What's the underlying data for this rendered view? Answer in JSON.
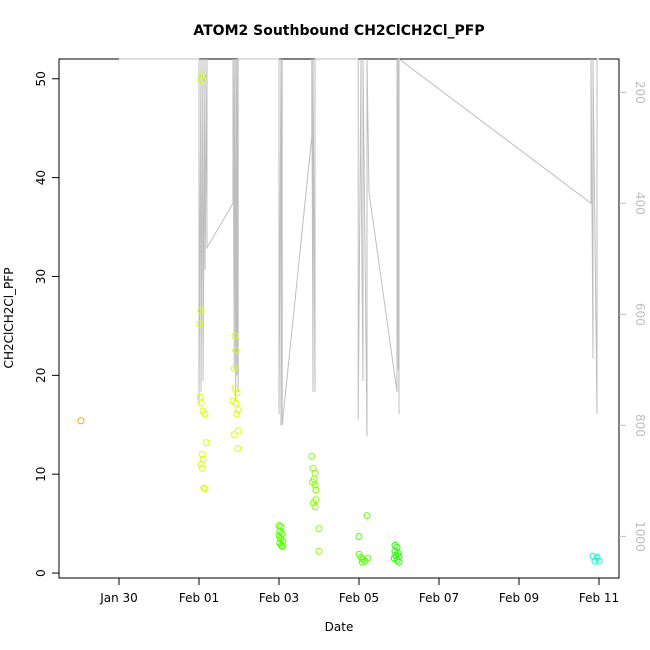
{
  "chart_data": {
    "type": "scatter",
    "title": "ATOM2 Southbound CH2ClCH2Cl_PFP",
    "xlabel": "Date",
    "ylabel": "CH2ClCH2Cl_PFP",
    "x_unit": "days relative to Jan 30",
    "xlim": [
      -1.5,
      12.5
    ],
    "ylim": [
      -0.5,
      52
    ],
    "x_ticks": [
      {
        "label": "Jan 30",
        "value": 0
      },
      {
        "label": "Feb 01",
        "value": 2
      },
      {
        "label": "Feb 03",
        "value": 4
      },
      {
        "label": "Feb 05",
        "value": 6
      },
      {
        "label": "Feb 07",
        "value": 8
      },
      {
        "label": "Feb 09",
        "value": 10
      },
      {
        "label": "Feb 11",
        "value": 12
      }
    ],
    "y_ticks": [
      0,
      10,
      20,
      30,
      40,
      50
    ],
    "right_axis": {
      "label": "",
      "range": [
        1075,
        140
      ],
      "ticks": [
        200,
        400,
        600,
        800,
        1000
      ],
      "color": "#bebebe"
    },
    "grid": false,
    "legend": "none",
    "points": [
      {
        "x": -0.95,
        "y": 15.4,
        "color": "#ffa500"
      },
      {
        "x": 2.05,
        "y": 49.9,
        "color": "#ccff00"
      },
      {
        "x": 2.1,
        "y": 50.3,
        "color": "#ccff00"
      },
      {
        "x": 2.05,
        "y": 26.5,
        "color": "#ddff00"
      },
      {
        "x": 2.02,
        "y": 25.2,
        "color": "#ddff00"
      },
      {
        "x": 2.03,
        "y": 17.8,
        "color": "#ddff00"
      },
      {
        "x": 2.05,
        "y": 17.2,
        "color": "#ddff00"
      },
      {
        "x": 2.1,
        "y": 16.4,
        "color": "#ddff00"
      },
      {
        "x": 2.15,
        "y": 16.1,
        "color": "#ddff00"
      },
      {
        "x": 2.18,
        "y": 13.2,
        "color": "#ddff00"
      },
      {
        "x": 2.08,
        "y": 12.0,
        "color": "#ddff00"
      },
      {
        "x": 2.1,
        "y": 11.5,
        "color": "#ddff00"
      },
      {
        "x": 2.05,
        "y": 11.0,
        "color": "#ddff00"
      },
      {
        "x": 2.08,
        "y": 10.6,
        "color": "#ddff00"
      },
      {
        "x": 2.12,
        "y": 8.6,
        "color": "#ddff00"
      },
      {
        "x": 2.15,
        "y": 8.5,
        "color": "#ddff00"
      },
      {
        "x": 2.9,
        "y": 24.0,
        "color": "#ddff00"
      },
      {
        "x": 2.92,
        "y": 22.5,
        "color": "#ddff00"
      },
      {
        "x": 2.88,
        "y": 20.7,
        "color": "#ddff00"
      },
      {
        "x": 2.9,
        "y": 18.7,
        "color": "#ddff00"
      },
      {
        "x": 2.95,
        "y": 18.2,
        "color": "#ddff00"
      },
      {
        "x": 2.85,
        "y": 17.4,
        "color": "#ddff00"
      },
      {
        "x": 2.92,
        "y": 17.2,
        "color": "#ddff00"
      },
      {
        "x": 2.98,
        "y": 16.5,
        "color": "#ddff00"
      },
      {
        "x": 2.94,
        "y": 16.1,
        "color": "#ddff00"
      },
      {
        "x": 2.98,
        "y": 14.4,
        "color": "#ddff00"
      },
      {
        "x": 2.88,
        "y": 14.0,
        "color": "#ddff00"
      },
      {
        "x": 2.97,
        "y": 12.6,
        "color": "#ddff00"
      },
      {
        "x": 4.0,
        "y": 4.8,
        "color": "#55ff00"
      },
      {
        "x": 4.05,
        "y": 4.7,
        "color": "#55ff00"
      },
      {
        "x": 4.02,
        "y": 4.2,
        "color": "#55ff00"
      },
      {
        "x": 4.08,
        "y": 4.0,
        "color": "#55ff00"
      },
      {
        "x": 4.0,
        "y": 3.8,
        "color": "#55ff00"
      },
      {
        "x": 4.04,
        "y": 3.5,
        "color": "#55ff00"
      },
      {
        "x": 4.1,
        "y": 3.2,
        "color": "#55ff00"
      },
      {
        "x": 4.02,
        "y": 3.0,
        "color": "#55ff00"
      },
      {
        "x": 4.06,
        "y": 2.8,
        "color": "#55ff00"
      },
      {
        "x": 4.09,
        "y": 2.7,
        "color": "#55ff00"
      },
      {
        "x": 4.82,
        "y": 11.8,
        "color": "#88ff00"
      },
      {
        "x": 4.85,
        "y": 10.6,
        "color": "#88ff00"
      },
      {
        "x": 4.9,
        "y": 10.1,
        "color": "#88ff00"
      },
      {
        "x": 4.88,
        "y": 9.5,
        "color": "#88ff00"
      },
      {
        "x": 4.84,
        "y": 9.2,
        "color": "#88ff00"
      },
      {
        "x": 4.9,
        "y": 8.9,
        "color": "#88ff00"
      },
      {
        "x": 4.92,
        "y": 8.4,
        "color": "#88ff00"
      },
      {
        "x": 4.92,
        "y": 7.4,
        "color": "#88ff00"
      },
      {
        "x": 4.86,
        "y": 7.1,
        "color": "#88ff00"
      },
      {
        "x": 4.9,
        "y": 6.7,
        "color": "#88ff00"
      },
      {
        "x": 5.0,
        "y": 4.5,
        "color": "#88ff00"
      },
      {
        "x": 5.0,
        "y": 2.2,
        "color": "#88ff00"
      },
      {
        "x": 6.0,
        "y": 3.7,
        "color": "#55ff00"
      },
      {
        "x": 6.2,
        "y": 5.8,
        "color": "#55ff00"
      },
      {
        "x": 6.0,
        "y": 1.9,
        "color": "#55ff00"
      },
      {
        "x": 6.05,
        "y": 1.6,
        "color": "#55ff00"
      },
      {
        "x": 6.1,
        "y": 1.4,
        "color": "#55ff00"
      },
      {
        "x": 6.15,
        "y": 1.2,
        "color": "#55ff00"
      },
      {
        "x": 6.22,
        "y": 1.5,
        "color": "#55ff00"
      },
      {
        "x": 6.08,
        "y": 1.1,
        "color": "#55ff00"
      },
      {
        "x": 6.9,
        "y": 2.8,
        "color": "#22ff00"
      },
      {
        "x": 6.95,
        "y": 2.6,
        "color": "#22ff00"
      },
      {
        "x": 6.9,
        "y": 2.2,
        "color": "#22ff00"
      },
      {
        "x": 6.98,
        "y": 2.0,
        "color": "#22ff00"
      },
      {
        "x": 6.92,
        "y": 1.8,
        "color": "#22ff00"
      },
      {
        "x": 7.0,
        "y": 1.7,
        "color": "#22ff00"
      },
      {
        "x": 6.88,
        "y": 1.5,
        "color": "#22ff00"
      },
      {
        "x": 6.95,
        "y": 1.3,
        "color": "#22ff00"
      },
      {
        "x": 7.0,
        "y": 1.1,
        "color": "#22ff00"
      },
      {
        "x": 11.85,
        "y": 1.7,
        "color": "#00ffcc"
      },
      {
        "x": 11.95,
        "y": 1.6,
        "color": "#00ffcc"
      },
      {
        "x": 11.9,
        "y": 1.2,
        "color": "#00ffcc"
      },
      {
        "x": 12.0,
        "y": 1.2,
        "color": "#00ffcc"
      }
    ],
    "altitude_line": {
      "color": "#bebebe",
      "x": [
        0.0,
        2.0,
        2.0,
        2.05,
        2.05,
        2.1,
        2.1,
        2.15,
        2.15,
        2.2,
        2.2,
        2.85,
        2.85,
        2.88,
        2.88,
        2.92,
        2.92,
        2.95,
        2.95,
        2.98,
        2.98,
        4.0,
        4.0,
        4.05,
        4.05,
        4.08,
        4.08,
        4.82,
        4.82,
        4.85,
        4.85,
        4.9,
        4.9,
        5.98,
        5.98,
        6.05,
        6.05,
        6.1,
        6.1,
        6.2,
        6.2,
        6.25,
        6.25,
        6.95,
        6.95,
        6.98,
        6.98,
        7.0,
        7.0,
        11.8,
        11.8,
        11.85,
        11.85,
        11.95,
        11.95,
        12.0,
        12.0
      ],
      "y": [
        140,
        140,
        760,
        140,
        740,
        140,
        720,
        140,
        520,
        140,
        480,
        400,
        140,
        700,
        140,
        760,
        140,
        710,
        140,
        740,
        140,
        140,
        780,
        140,
        800,
        140,
        800,
        280,
        140,
        740,
        140,
        740,
        140,
        140,
        790,
        140,
        310,
        720,
        140,
        820,
        140,
        380,
        380,
        740,
        140,
        700,
        140,
        780,
        140,
        400,
        140,
        680,
        140,
        780,
        140,
        140,
        140
      ]
    }
  }
}
